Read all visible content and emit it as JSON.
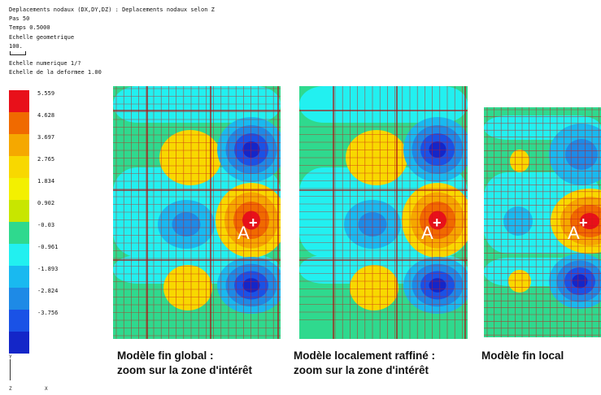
{
  "header": {
    "title": "Deplacements nodaux (DX,DY,DZ) : Deplacements nodaux selon Z",
    "pas": "Pas 50",
    "temps": "Temps 0.5000",
    "echelle_geo": "Echelle geometrique",
    "scale_value": "100.",
    "echelle_num": "Echelle numerique 1/?",
    "echelle_def": "Echelle de la deformee 1.00"
  },
  "legend": {
    "values": [
      "5.559",
      "4.628",
      "3.697",
      "2.765",
      "1.834",
      "0.902",
      "-0.03",
      "-0.961",
      "-1.893",
      "-2.824",
      "-3.756"
    ],
    "colors": [
      "#e8101a",
      "#f06a00",
      "#f5a800",
      "#f8d800",
      "#f3f000",
      "#c8e600",
      "#2fd98e",
      "#22f0f0",
      "#19b9f0",
      "#1e8ae6",
      "#1a52e6",
      "#1426c8"
    ]
  },
  "axes": {
    "v": "Y",
    "z": "Z",
    "x": "X"
  },
  "panels": [
    {
      "caption_line1": "Modèle fin global :",
      "caption_line2": "zoom sur la zone d'intérêt",
      "marker": "A"
    },
    {
      "caption_line1": "Modèle localement raffiné :",
      "caption_line2": "zoom sur la zone d'intérêt",
      "marker": "A"
    },
    {
      "caption_line1": "Modèle fin local",
      "caption_line2": "",
      "marker": "A"
    }
  ]
}
